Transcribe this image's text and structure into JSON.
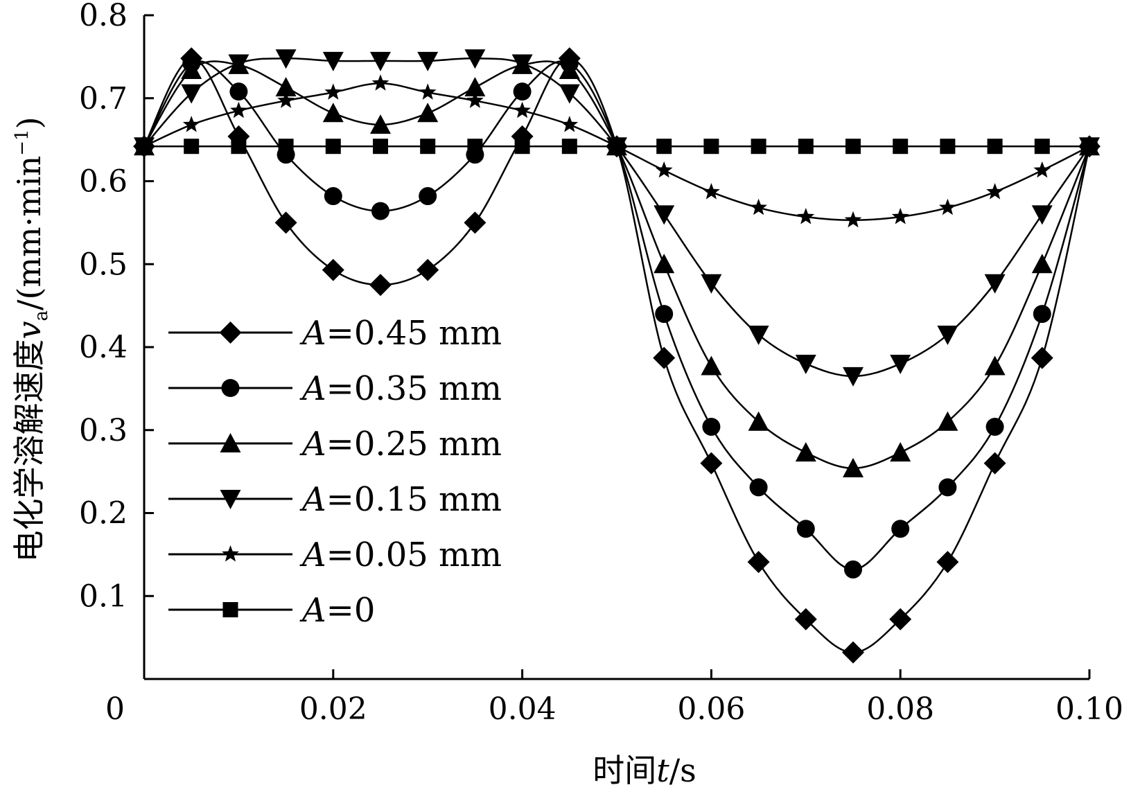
{
  "chart_data": {
    "type": "line",
    "title": "",
    "xlabel": "时间t/s",
    "ylabel": "电化学溶解速度v_a/(mm·min⁻¹)",
    "ylabel_parts": {
      "cn": "电化学溶解速度",
      "var": "v",
      "sub": "a",
      "unit": "/(mm·min",
      "sup": "−1",
      "close": ")"
    },
    "xlabel_parts": {
      "cn": "时间",
      "var": "t",
      "unit": "/s"
    },
    "xlim": [
      0,
      0.1
    ],
    "ylim": [
      0,
      0.8
    ],
    "x_ticks": [
      {
        "value": 0,
        "label": "0"
      },
      {
        "value": 0.02,
        "label": "0.02"
      },
      {
        "value": 0.04,
        "label": "0.04"
      },
      {
        "value": 0.06,
        "label": "0.06"
      },
      {
        "value": 0.08,
        "label": "0.08"
      },
      {
        "value": 0.1,
        "label": "0.10"
      }
    ],
    "y_ticks": [
      {
        "value": 0.1,
        "label": "0.1"
      },
      {
        "value": 0.2,
        "label": "0.2"
      },
      {
        "value": 0.3,
        "label": "0.3"
      },
      {
        "value": 0.4,
        "label": "0.4"
      },
      {
        "value": 0.5,
        "label": "0.5"
      },
      {
        "value": 0.6,
        "label": "0.6"
      },
      {
        "value": 0.7,
        "label": "0.7"
      },
      {
        "value": 0.8,
        "label": "0.8"
      }
    ],
    "grid": false,
    "legend_position": "left-bottom",
    "x": [
      0,
      0.005,
      0.01,
      0.015,
      0.02,
      0.025,
      0.03,
      0.035,
      0.04,
      0.045,
      0.05,
      0.055,
      0.06,
      0.065,
      0.07,
      0.075,
      0.08,
      0.085,
      0.09,
      0.095,
      0.1
    ],
    "series": [
      {
        "name": "A=0.45 mm",
        "label_var": "A",
        "label_rest": "=0.45 mm",
        "marker": "diamond",
        "values": [
          0.642,
          0.748,
          0.654,
          0.55,
          0.493,
          0.475,
          0.493,
          0.55,
          0.654,
          0.748,
          0.642,
          0.387,
          0.26,
          0.141,
          0.072,
          0.032,
          0.072,
          0.141,
          0.26,
          0.387,
          0.642
        ]
      },
      {
        "name": "A=0.35 mm",
        "label_var": "A",
        "label_rest": "=0.35 mm",
        "marker": "circle",
        "values": [
          0.642,
          0.742,
          0.708,
          0.632,
          0.582,
          0.564,
          0.582,
          0.632,
          0.708,
          0.742,
          0.642,
          0.44,
          0.304,
          0.231,
          0.181,
          0.132,
          0.181,
          0.231,
          0.304,
          0.44,
          0.642
        ]
      },
      {
        "name": "A=0.25 mm",
        "label_var": "A",
        "label_rest": "=0.25 mm",
        "marker": "triangle-up",
        "values": [
          0.642,
          0.734,
          0.74,
          0.713,
          0.682,
          0.668,
          0.682,
          0.713,
          0.74,
          0.734,
          0.642,
          0.5,
          0.377,
          0.31,
          0.273,
          0.254,
          0.273,
          0.31,
          0.377,
          0.5,
          0.642
        ]
      },
      {
        "name": "A=0.15 mm",
        "label_var": "A",
        "label_rest": "=0.15 mm",
        "marker": "triangle-down",
        "values": [
          0.642,
          0.706,
          0.742,
          0.748,
          0.745,
          0.745,
          0.745,
          0.748,
          0.742,
          0.706,
          0.642,
          0.56,
          0.477,
          0.415,
          0.38,
          0.365,
          0.38,
          0.415,
          0.477,
          0.56,
          0.642
        ]
      },
      {
        "name": "A=0.05 mm",
        "label_var": "A",
        "label_rest": "=0.05 mm",
        "marker": "star",
        "values": [
          0.642,
          0.668,
          0.685,
          0.697,
          0.707,
          0.718,
          0.707,
          0.697,
          0.685,
          0.668,
          0.642,
          0.613,
          0.587,
          0.568,
          0.557,
          0.553,
          0.557,
          0.568,
          0.587,
          0.613,
          0.642
        ]
      },
      {
        "name": "A=0",
        "label_var": "A",
        "label_rest": "=0",
        "marker": "square",
        "values": [
          0.642,
          0.642,
          0.642,
          0.642,
          0.642,
          0.642,
          0.642,
          0.642,
          0.642,
          0.642,
          0.642,
          0.642,
          0.642,
          0.642,
          0.642,
          0.642,
          0.642,
          0.642,
          0.642,
          0.642,
          0.642
        ]
      }
    ]
  },
  "colors": {
    "ink": "#000000",
    "background": "#ffffff"
  }
}
